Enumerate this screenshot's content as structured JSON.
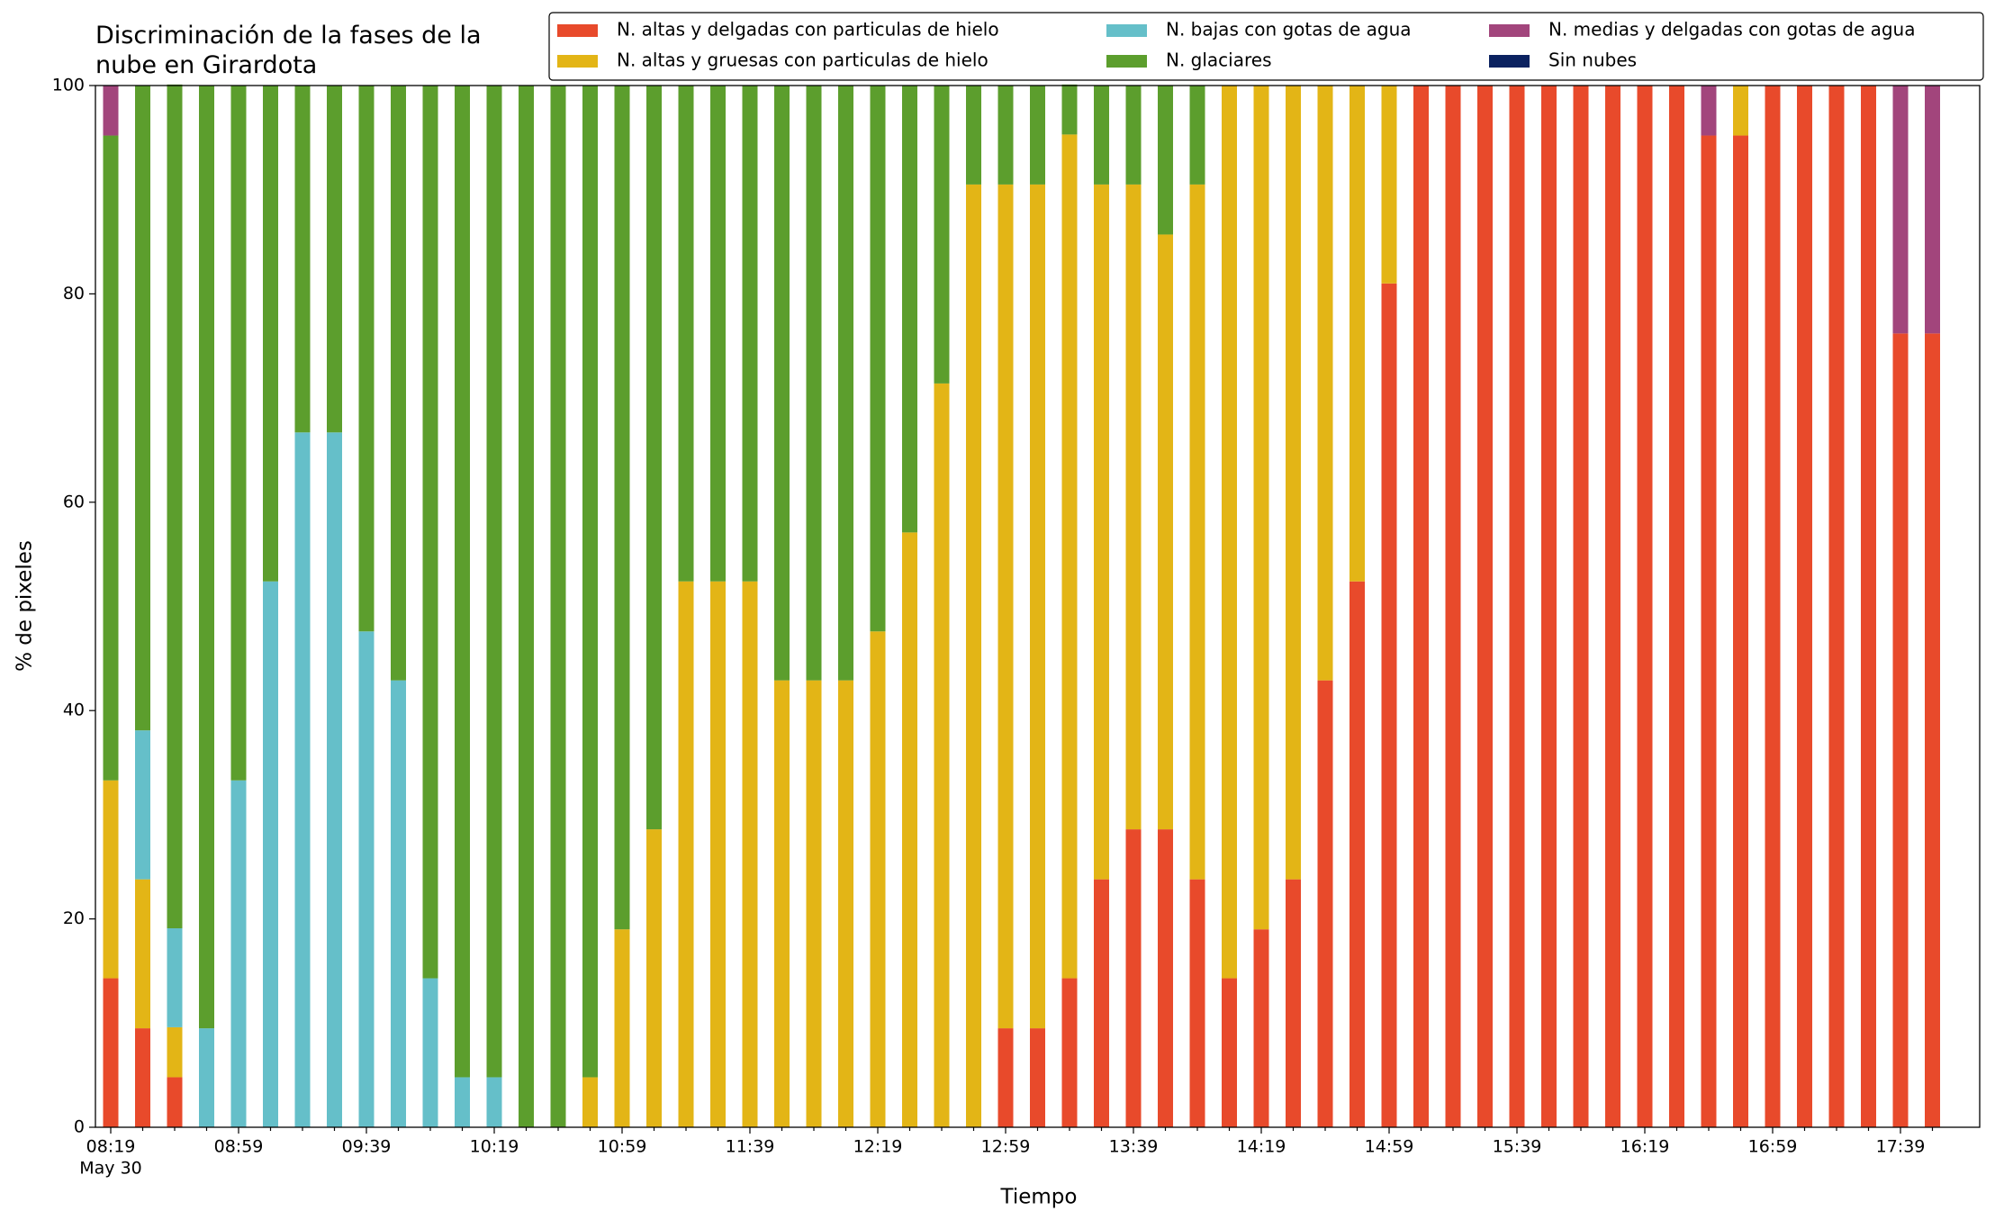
{
  "chart_data": {
    "type": "bar",
    "stacked": true,
    "title": "Discriminación de la fases de la\nnube en Girardota",
    "xlabel": "Tiempo",
    "ylabel": "% de pixeles",
    "date_label": "May 30",
    "categories": [
      "08:19",
      null,
      null,
      null,
      "08:59",
      null,
      null,
      null,
      "09:39",
      null,
      null,
      null,
      "10:19",
      null,
      null,
      null,
      "10:59",
      null,
      null,
      null,
      "11:39",
      null,
      null,
      null,
      "12:19",
      null,
      null,
      null,
      "12:59",
      null,
      null,
      null,
      "13:39",
      null,
      null,
      null,
      "14:19",
      null,
      null,
      null,
      "14:59",
      null,
      null,
      null,
      "15:39",
      null,
      null,
      null,
      "16:19",
      null,
      null,
      null,
      "16:59",
      null,
      null,
      null,
      "17:39",
      null
    ],
    "series": [
      {
        "name": "N. altas y delgadas con particulas de hielo",
        "color": "#e84a2b",
        "values": [
          14.3,
          9.5,
          4.8,
          0,
          0,
          0,
          0,
          0,
          0,
          0,
          0,
          0,
          0,
          0,
          0,
          0,
          0,
          0,
          0,
          0,
          0,
          0,
          0,
          0,
          0,
          0,
          0,
          0,
          9.5,
          9.5,
          14.3,
          23.8,
          28.6,
          28.6,
          23.8,
          14.3,
          19,
          23.8,
          42.9,
          52.4,
          81,
          100,
          100,
          100,
          100,
          100,
          100,
          100,
          100,
          100,
          95.2,
          95.2,
          100,
          100,
          100,
          100,
          76.2,
          76.2
        ]
      },
      {
        "name": "N. altas y gruesas con particulas de hielo",
        "color": "#e3b516",
        "values": [
          19,
          14.3,
          4.8,
          0,
          0,
          0,
          0,
          0,
          0,
          0,
          0,
          0,
          0,
          0,
          0,
          4.8,
          19,
          28.6,
          52.4,
          52.4,
          52.4,
          42.9,
          42.9,
          42.9,
          47.6,
          57.1,
          71.4,
          90.5,
          81,
          81,
          81,
          66.7,
          61.9,
          57.1,
          66.7,
          85.7,
          81,
          76.2,
          57.1,
          47.6,
          19,
          0,
          0,
          0,
          0,
          0,
          0,
          0,
          0,
          0,
          0,
          4.8,
          0,
          0,
          0,
          0,
          0,
          0
        ]
      },
      {
        "name": "N. bajas con gotas de agua",
        "color": "#65bfc9",
        "values": [
          0,
          14.3,
          9.5,
          9.5,
          33.3,
          52.4,
          66.7,
          66.7,
          47.6,
          42.9,
          14.3,
          4.8,
          4.8,
          0,
          0,
          0,
          0,
          0,
          0,
          0,
          0,
          0,
          0,
          0,
          0,
          0,
          0,
          0,
          0,
          0,
          0,
          0,
          0,
          0,
          0,
          0,
          0,
          0,
          0,
          0,
          0,
          0,
          0,
          0,
          0,
          0,
          0,
          0,
          0,
          0,
          0,
          0,
          0,
          0,
          0,
          0,
          0,
          0
        ]
      },
      {
        "name": "N. glaciares",
        "color": "#5c9e2d",
        "values": [
          61.9,
          61.9,
          81,
          90.5,
          66.7,
          47.6,
          33.3,
          33.3,
          52.4,
          57.1,
          85.7,
          95.2,
          95.2,
          100,
          100,
          95.2,
          81,
          71.4,
          47.6,
          47.6,
          47.6,
          57.1,
          57.1,
          57.1,
          52.4,
          42.9,
          28.6,
          9.5,
          9.5,
          9.5,
          4.8,
          9.5,
          9.5,
          14.3,
          9.5,
          0,
          0,
          0,
          0,
          0,
          0,
          0,
          0,
          0,
          0,
          0,
          0,
          0,
          0,
          0,
          0,
          0,
          0,
          0,
          0,
          0,
          0,
          0
        ]
      },
      {
        "name": "N. medias y delgadas con gotas de agua",
        "color": "#a2457c",
        "values": [
          4.8,
          0,
          0,
          0,
          0,
          0,
          0,
          0,
          0,
          0,
          0,
          0,
          0,
          0,
          0,
          0,
          0,
          0,
          0,
          0,
          0,
          0,
          0,
          0,
          0,
          0,
          0,
          0,
          0,
          0,
          0,
          0,
          0,
          0,
          0,
          0,
          0,
          0,
          0,
          0,
          0,
          0,
          0,
          0,
          0,
          0,
          0,
          0,
          0,
          0,
          4.8,
          0,
          0,
          0,
          0,
          0,
          23.8,
          23.8
        ]
      },
      {
        "name": "Sin nubes",
        "color": "#0b2260",
        "values": [
          0,
          0,
          0,
          0,
          0,
          0,
          0,
          0,
          0,
          0,
          0,
          0,
          0,
          0,
          0,
          0,
          0,
          0,
          0,
          0,
          0,
          0,
          0,
          0,
          0,
          0,
          0,
          0,
          0,
          0,
          0,
          0,
          0,
          0,
          0,
          0,
          0,
          0,
          0,
          0,
          0,
          0,
          0,
          0,
          0,
          0,
          0,
          0,
          0,
          0,
          0,
          0,
          0,
          0,
          0,
          0,
          0,
          0
        ]
      }
    ],
    "ylim": [
      0,
      100
    ],
    "yticks": [
      0,
      20,
      40,
      60,
      80,
      100
    ],
    "grid": false,
    "legend": "top right"
  }
}
